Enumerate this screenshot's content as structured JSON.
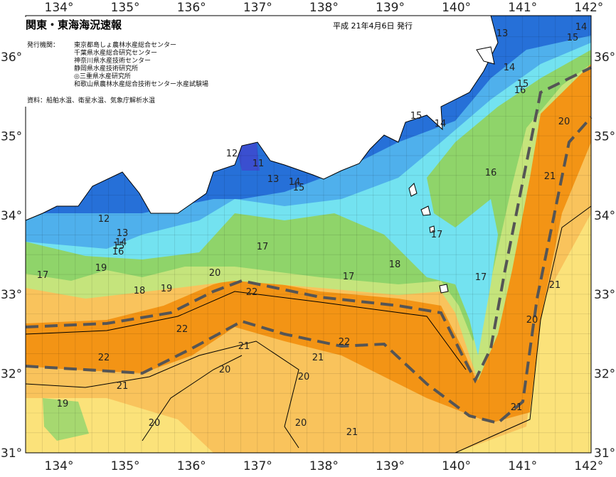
{
  "title": "関東・東海海況速報",
  "issued": "平成 21年4月6日 発行",
  "publisher_label": "発行機関：",
  "publishers": [
    "東京都島しょ農林水産総合センター",
    "千葉県水産総合研究センター",
    "神奈川県水産技術センター",
    "静岡県水産技術研究所",
    "◎三重県水産研究所",
    "和歌山県農林水産総合技術センター水産試験場"
  ],
  "sources": "資料：船舶水温、衛星水温、気象庁解析水温",
  "longitude_labels": [
    "134°",
    "135°",
    "136°",
    "137°",
    "138°",
    "139°",
    "140°",
    "141°",
    "142°"
  ],
  "latitude_labels": [
    "36°",
    "35°",
    "34°",
    "33°",
    "32°",
    "31°"
  ],
  "contour_labels": [
    13,
    14,
    15,
    14,
    15,
    16,
    15,
    14,
    20,
    12,
    11,
    13,
    14,
    15,
    16,
    21,
    12,
    13,
    14,
    15,
    16,
    17,
    17,
    19,
    20,
    17,
    18,
    17,
    17,
    18,
    19,
    22,
    21,
    22,
    20,
    22,
    21,
    21,
    22,
    20,
    20,
    21,
    19,
    21,
    20,
    20,
    21
  ]
}
